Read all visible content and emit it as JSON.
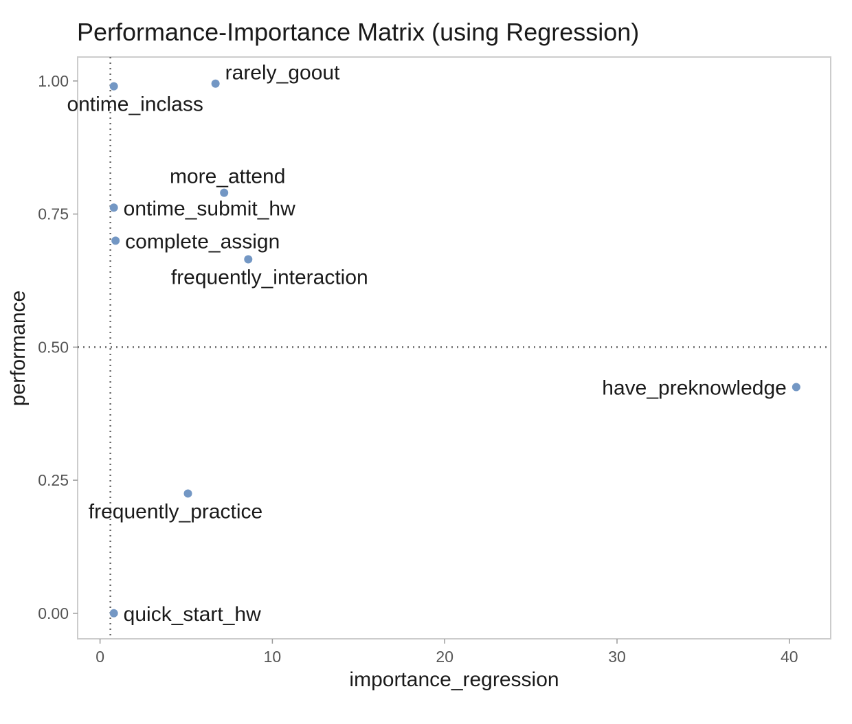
{
  "chart_data": {
    "type": "scatter",
    "title": "Performance-Importance Matrix (using Regression)",
    "xlabel": "importance_regression",
    "ylabel": "performance",
    "xlim": [
      -1.3,
      42.4
    ],
    "ylim": [
      -0.048,
      1.045
    ],
    "x_ticks": [
      0,
      10,
      20,
      30,
      40
    ],
    "y_ticks": [
      0.0,
      0.25,
      0.5,
      0.75,
      1.0
    ],
    "x_tick_labels": [
      "0",
      "10",
      "20",
      "30",
      "40"
    ],
    "y_tick_labels": [
      "0.00",
      "0.25",
      "0.50",
      "0.75",
      "1.00"
    ],
    "reference_lines": {
      "x": 0.6,
      "y": 0.5,
      "style": "dotted"
    },
    "grid": false,
    "point_color": "#7397c4",
    "points": [
      {
        "label": "rarely_goout",
        "x": 6.7,
        "y": 0.995,
        "label_pos": "above-right"
      },
      {
        "label": "ontime_inclass",
        "x": 0.8,
        "y": 0.99,
        "label_pos": "below"
      },
      {
        "label": "more_attend",
        "x": 7.2,
        "y": 0.79,
        "label_pos": "above"
      },
      {
        "label": "ontime_submit_hw",
        "x": 0.8,
        "y": 0.762,
        "label_pos": "right"
      },
      {
        "label": "complete_assign",
        "x": 0.9,
        "y": 0.7,
        "label_pos": "right"
      },
      {
        "label": "frequently_interaction",
        "x": 8.6,
        "y": 0.665,
        "label_pos": "below"
      },
      {
        "label": "have_preknowledge",
        "x": 40.4,
        "y": 0.425,
        "label_pos": "left"
      },
      {
        "label": "frequently_practice",
        "x": 5.1,
        "y": 0.225,
        "label_pos": "below-left"
      },
      {
        "label": "quick_start_hw",
        "x": 0.8,
        "y": 0.0,
        "label_pos": "right"
      }
    ]
  }
}
